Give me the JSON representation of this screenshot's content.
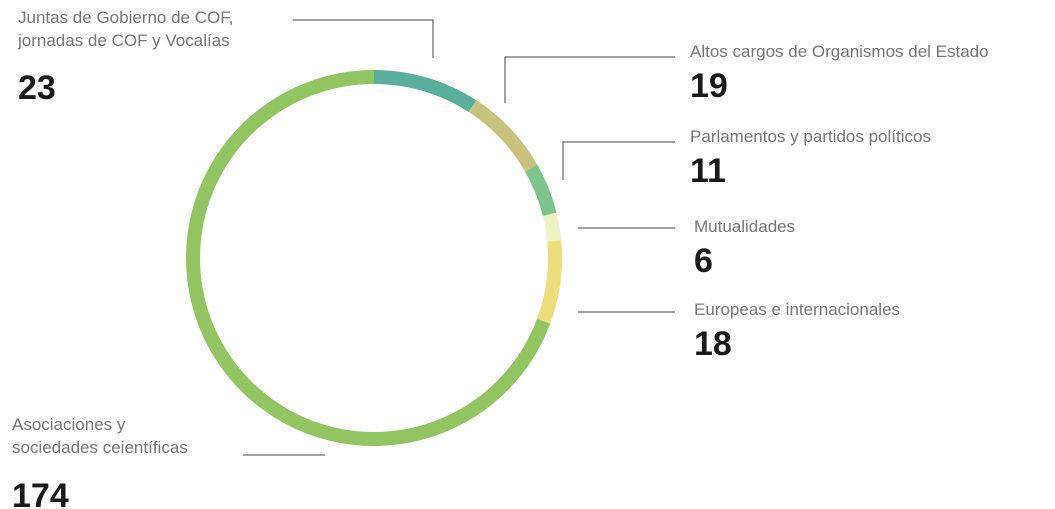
{
  "chart_data": {
    "type": "donut",
    "categories": [
      "Juntas de Gobierno de COF, jornadas de COF y Vocalías",
      "Altos cargos de Organismos del Estado",
      "Parlamentos y partidos políticos",
      "Mutualidades",
      "Europeas e internacionales",
      "Asociaciones y sociedades ceientíficas"
    ],
    "values": [
      23,
      19,
      11,
      6,
      18,
      174
    ],
    "colors": [
      "#5aae9c",
      "#c9c27f",
      "#7dc48f",
      "#eef3c4",
      "#eedd7c",
      "#93c462"
    ]
  }
}
